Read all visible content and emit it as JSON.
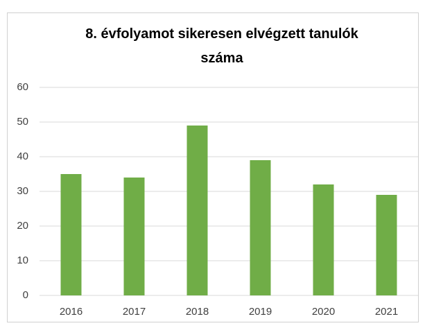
{
  "chart_data": {
    "type": "bar",
    "title": "8. évfolyamot sikeresen elvégzett tanulók száma",
    "categories": [
      "2016",
      "2017",
      "2018",
      "2019",
      "2020",
      "2021"
    ],
    "values": [
      35,
      34,
      49,
      39,
      32,
      29
    ],
    "color": "#70ad47",
    "ylim": [
      0,
      60
    ],
    "yticks": [
      0,
      10,
      20,
      30,
      40,
      50,
      60
    ],
    "grid": true
  }
}
